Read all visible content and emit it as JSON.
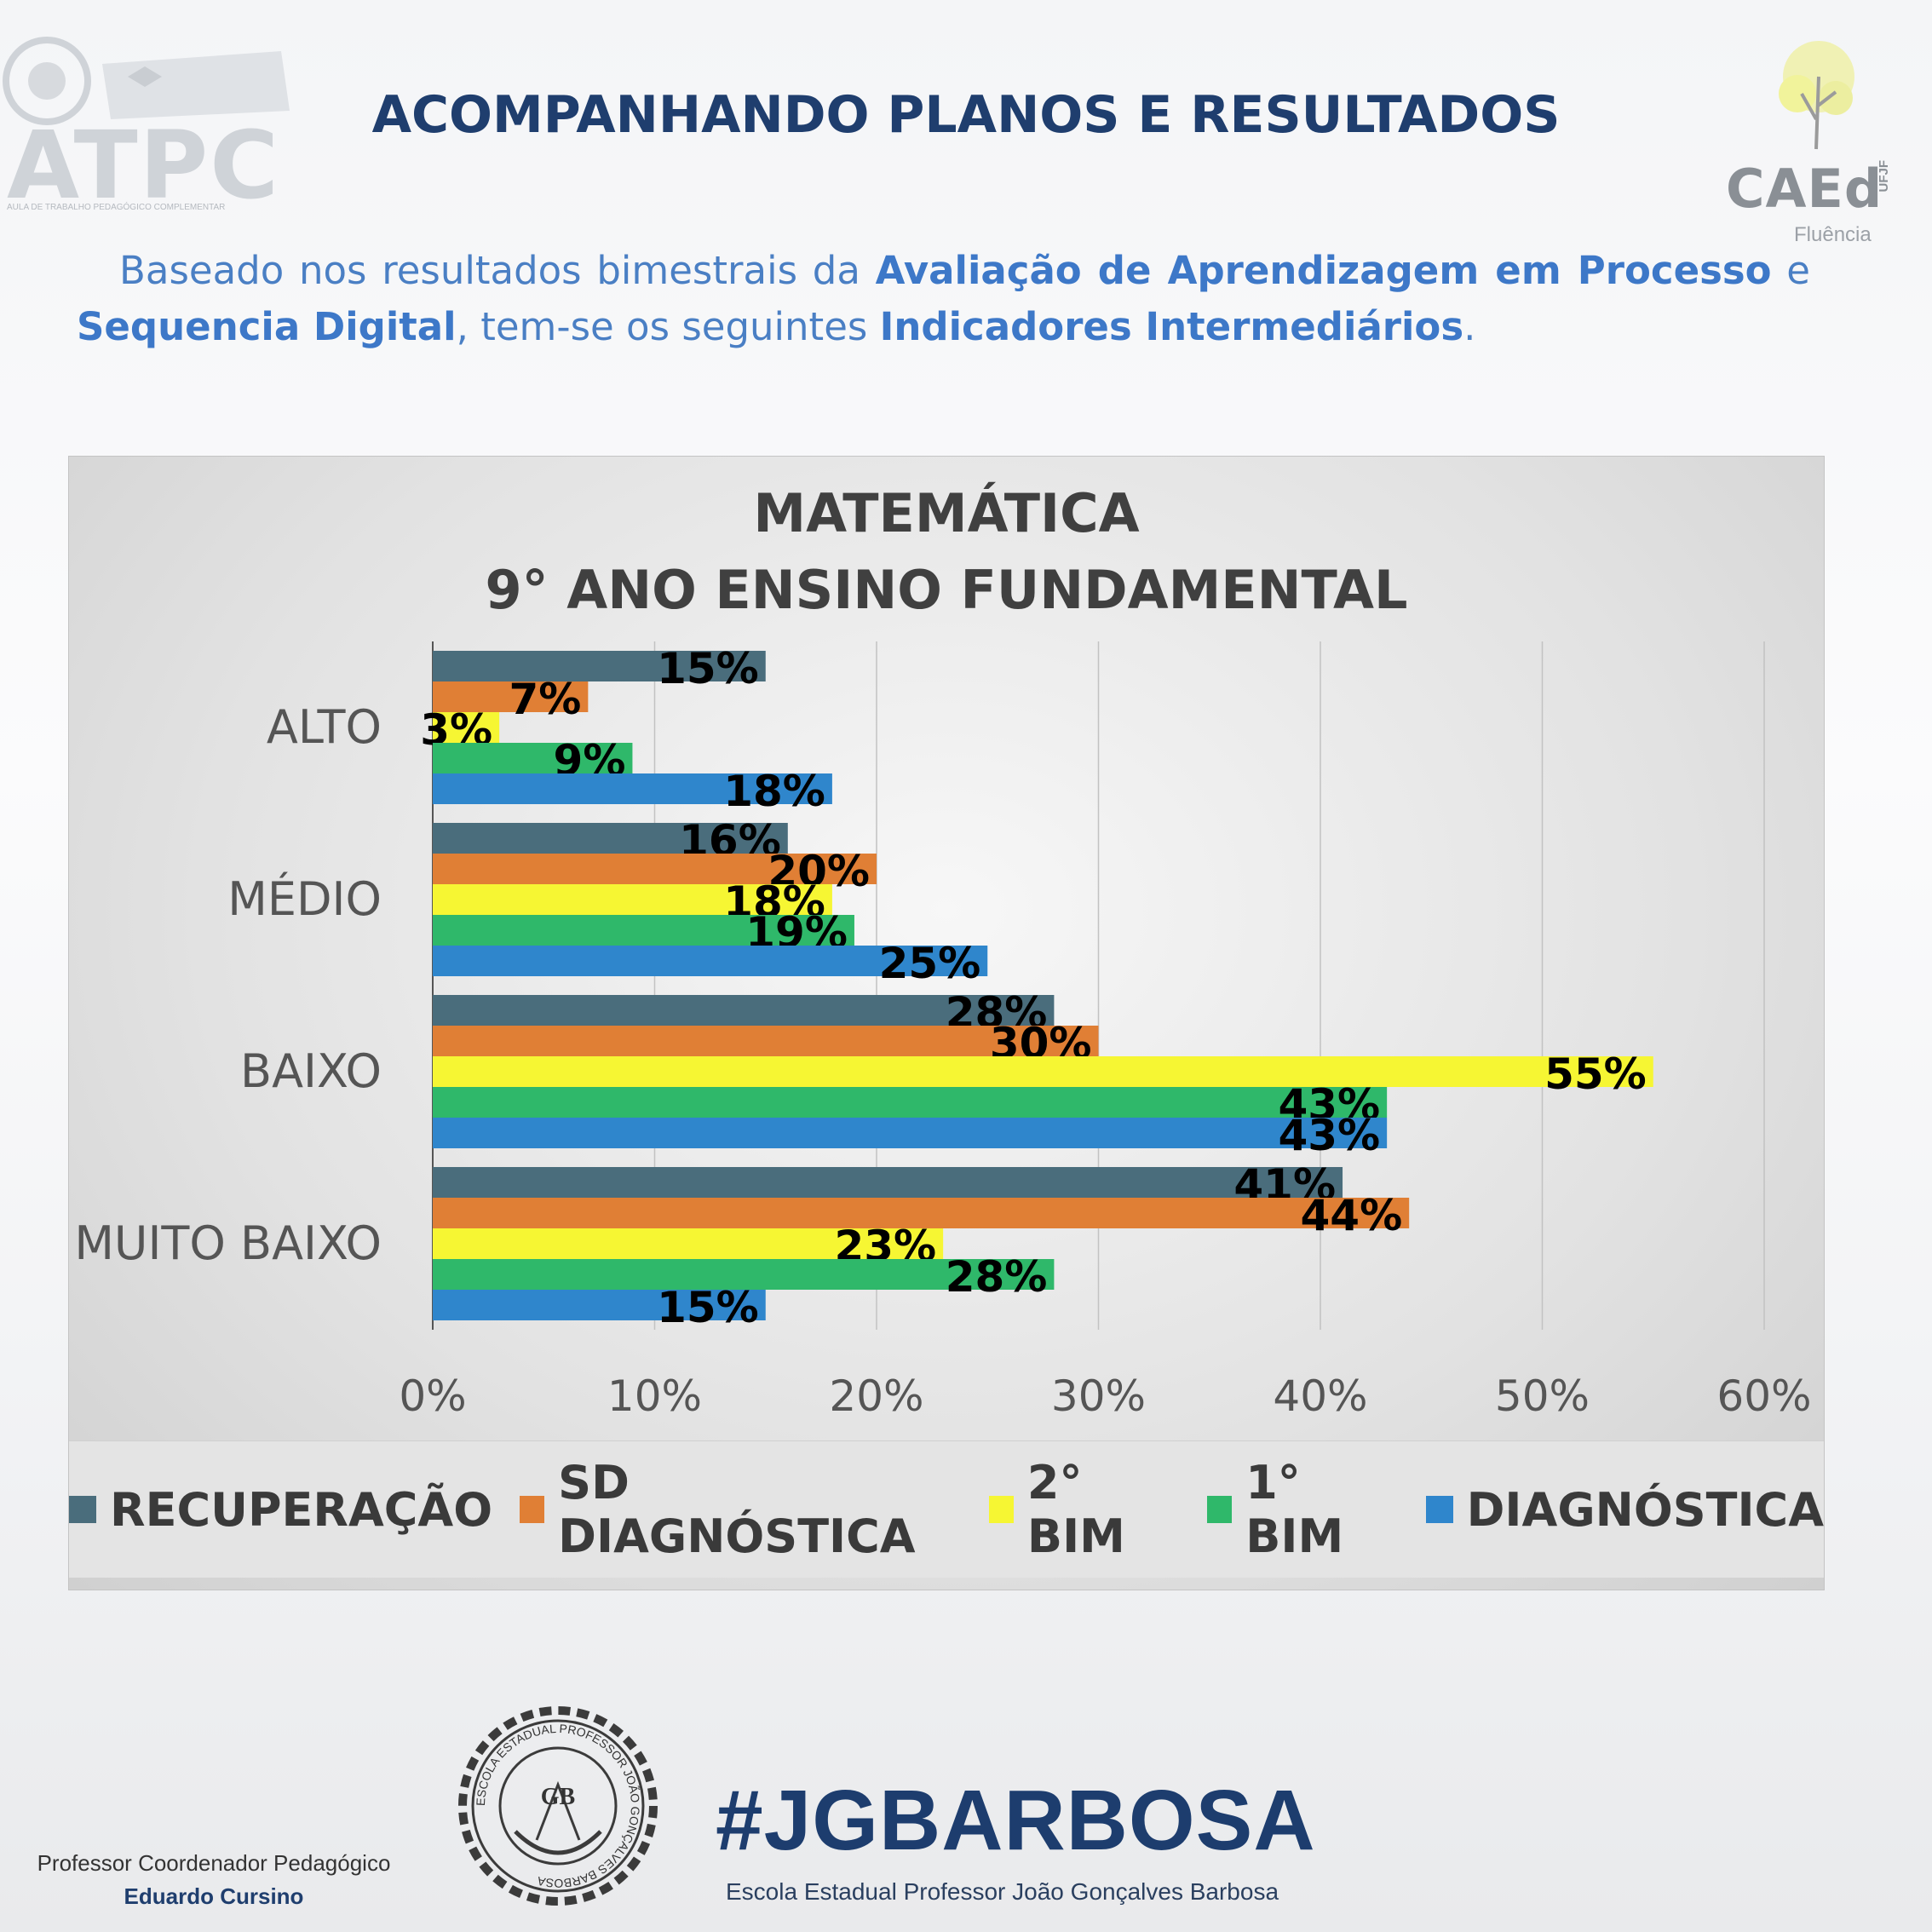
{
  "header": {
    "title": "ACOMPANHANDO PLANOS E RESULTADOS",
    "logo_left": {
      "letters": "ATPC",
      "subtitle": "AULA DE TRABALHO PEDAGÓGICO COMPLEMENTAR"
    },
    "logo_right": {
      "name": "CAEd",
      "tag": "UFJF",
      "subtitle": "Fluência"
    }
  },
  "intro": {
    "p1": "Baseado nos resultados bimestrais da ",
    "b1": "Avaliação de Aprendizagem em Processo",
    "p2": " e ",
    "b2": "Sequencia Digital",
    "p3": ", tem-se os seguintes ",
    "b3": "Indicadores Intermediários",
    "p4": "."
  },
  "chart_data": {
    "type": "bar",
    "orientation": "horizontal",
    "title": "MATEMÁTICA",
    "subtitle": "9° ANO ENSINO FUNDAMENTAL",
    "categories": [
      "ALTO",
      "MÉDIO",
      "BAIXO",
      "MUITO BAIXO"
    ],
    "series": [
      {
        "name": "RECUPERAÇÃO",
        "color": "#4a6d7c",
        "values": [
          15,
          16,
          28,
          41
        ]
      },
      {
        "name": "SD DIAGNÓSTICA",
        "color": "#e07f35",
        "values": [
          7,
          20,
          30,
          44
        ]
      },
      {
        "name": "2° BIM",
        "color": "#f6f633",
        "values": [
          3,
          18,
          55,
          23
        ]
      },
      {
        "name": "1° BIM",
        "color": "#2fb86a",
        "values": [
          9,
          19,
          43,
          28
        ]
      },
      {
        "name": "DIAGNÓSTICA",
        "color": "#2f86cc",
        "values": [
          18,
          25,
          43,
          15
        ]
      }
    ],
    "xlim": [
      0,
      60
    ],
    "xticks": [
      "0%",
      "10%",
      "20%",
      "30%",
      "40%",
      "50%",
      "60%"
    ],
    "value_suffix": "%",
    "grid": true,
    "legend_position": "bottom"
  },
  "footer": {
    "role": "Professor Coordenador Pedagógico",
    "name": "Eduardo Cursino",
    "hashtag": "#JGBARBOSA",
    "school": "Escola Estadual Professor João Gonçalves Barbosa",
    "seal_text": "ESCOLA ESTADUAL PROFESSOR JOÃO GONÇALVES BARBOSA",
    "seal_monogram": "GB"
  }
}
